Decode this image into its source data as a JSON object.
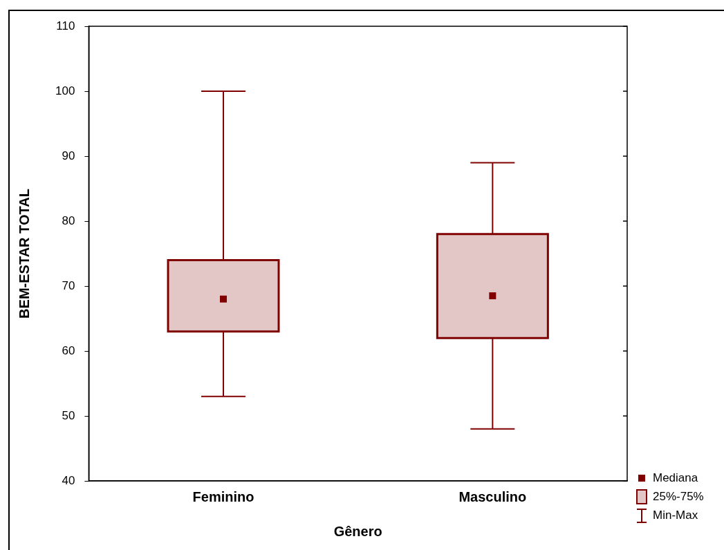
{
  "chart_data": {
    "type": "box",
    "xlabel": "Gênero",
    "ylabel": "BEM-ESTAR TOTAL",
    "categories": [
      "Feminino",
      "Masculino"
    ],
    "boxes": [
      {
        "low": 53,
        "q1": 63,
        "median": 68,
        "q3": 74,
        "high": 100
      },
      {
        "low": 48,
        "q1": 62,
        "median": 68.5,
        "q3": 78,
        "high": 89
      }
    ],
    "color": "#800000",
    "ylim": [
      40,
      110
    ],
    "yticks": [
      40,
      50,
      60,
      70,
      80,
      90,
      100,
      110
    ],
    "grid": false,
    "annotations": [
      "Mediana",
      "25%-75%",
      "Min-Max"
    ]
  }
}
